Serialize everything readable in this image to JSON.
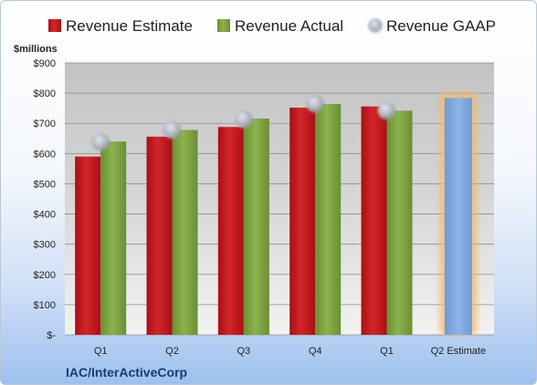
{
  "chart_data": {
    "type": "bar",
    "ylabel": "$millions",
    "footer": "IAC/InterActiveCorp",
    "categories": [
      "Q1",
      "Q2",
      "Q3",
      "Q4",
      "Q1",
      "Q2 Estimate"
    ],
    "ylim": [
      0,
      900
    ],
    "yticks": [
      {
        "value": 0,
        "label": "$-"
      },
      {
        "value": 100,
        "label": "$100"
      },
      {
        "value": 200,
        "label": "$200"
      },
      {
        "value": 300,
        "label": "$300"
      },
      {
        "value": 400,
        "label": "$400"
      },
      {
        "value": 500,
        "label": "$500"
      },
      {
        "value": 600,
        "label": "$600"
      },
      {
        "value": 700,
        "label": "$700"
      },
      {
        "value": 800,
        "label": "$800"
      },
      {
        "value": 900,
        "label": "$900"
      }
    ],
    "grid": true,
    "legend_position": "top",
    "series": [
      {
        "name": "Revenue Estimate",
        "color": "#c0161c",
        "values": [
          590,
          656,
          688,
          752,
          756,
          null
        ]
      },
      {
        "name": "Revenue Actual",
        "color": "#7ba23f",
        "values": [
          640,
          678,
          716,
          764,
          742,
          null
        ]
      },
      {
        "name": "Revenue GAAP",
        "color": "#a8aebb",
        "values": [
          638,
          678,
          713,
          765,
          742,
          null
        ]
      }
    ],
    "forecast": {
      "category_index": 5,
      "value": 784,
      "color": "#7ea6dc",
      "glow": "#f5b96a"
    }
  }
}
